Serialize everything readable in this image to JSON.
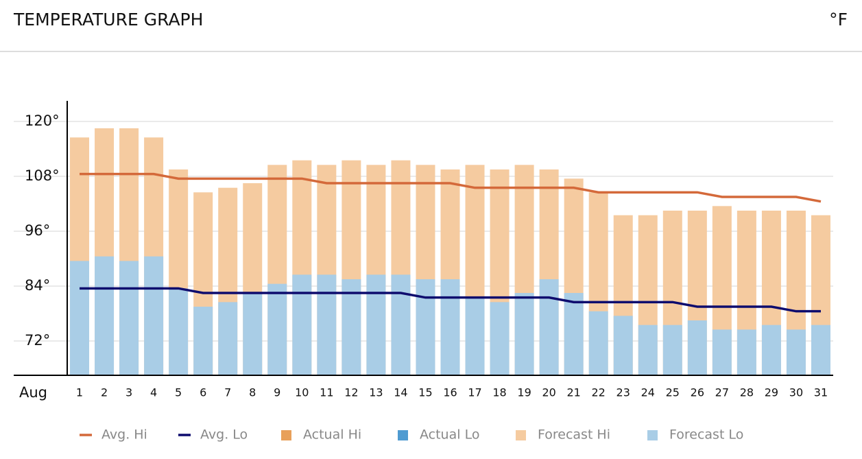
{
  "header": {
    "title": "TEMPERATURE GRAPH",
    "unit": "°F"
  },
  "chart_data": {
    "type": "bar",
    "x_label": "Aug",
    "categories": [
      "1",
      "2",
      "3",
      "4",
      "5",
      "6",
      "7",
      "8",
      "9",
      "10",
      "11",
      "12",
      "13",
      "14",
      "15",
      "16",
      "17",
      "18",
      "19",
      "20",
      "21",
      "22",
      "23",
      "24",
      "25",
      "26",
      "27",
      "28",
      "29",
      "30",
      "31"
    ],
    "ylim": [
      64.5,
      124.5
    ],
    "yticks": [
      {
        "value": 72,
        "label": "72°"
      },
      {
        "value": 84,
        "label": "84°"
      },
      {
        "value": 96,
        "label": "96°"
      },
      {
        "value": 108,
        "label": "108°"
      },
      {
        "value": 120,
        "label": "120°"
      }
    ],
    "grid": true,
    "series": [
      {
        "name": "Avg. Hi",
        "type": "line",
        "color": "#d4693a",
        "values": [
          108.5,
          108.5,
          108.5,
          108.5,
          107.5,
          107.5,
          107.5,
          107.5,
          107.5,
          107.5,
          106.5,
          106.5,
          106.5,
          106.5,
          106.5,
          106.5,
          105.5,
          105.5,
          105.5,
          105.5,
          105.5,
          104.5,
          104.5,
          104.5,
          104.5,
          104.5,
          103.5,
          103.5,
          103.5,
          103.5,
          102.5
        ]
      },
      {
        "name": "Avg. Lo",
        "type": "line",
        "color": "#0e0c6e",
        "values": [
          83.5,
          83.5,
          83.5,
          83.5,
          83.5,
          82.5,
          82.5,
          82.5,
          82.5,
          82.5,
          82.5,
          82.5,
          82.5,
          82.5,
          81.5,
          81.5,
          81.5,
          81.5,
          81.5,
          81.5,
          80.5,
          80.5,
          80.5,
          80.5,
          80.5,
          79.5,
          79.5,
          79.5,
          79.5,
          78.5,
          78.5
        ]
      },
      {
        "name": "Actual Hi",
        "type": "bar",
        "color": "#e8a05a",
        "values": [
          null,
          null,
          null,
          null,
          null,
          null,
          null,
          null,
          null,
          null,
          null,
          null,
          null,
          null,
          null,
          null,
          null,
          null,
          null,
          null,
          null,
          null,
          null,
          null,
          null,
          null,
          null,
          null,
          null,
          null,
          null
        ]
      },
      {
        "name": "Actual Lo",
        "type": "bar",
        "color": "#4f9bd1",
        "values": [
          null,
          null,
          null,
          null,
          null,
          null,
          null,
          null,
          null,
          null,
          null,
          null,
          null,
          null,
          null,
          null,
          null,
          null,
          null,
          null,
          null,
          null,
          null,
          null,
          null,
          null,
          null,
          null,
          null,
          null,
          null
        ]
      },
      {
        "name": "Forecast Hi",
        "type": "bar",
        "color": "#f5cba0",
        "values": [
          116.5,
          118.5,
          118.5,
          116.5,
          109.5,
          104.5,
          105.5,
          106.5,
          110.5,
          111.5,
          110.5,
          111.5,
          110.5,
          111.5,
          110.5,
          109.5,
          110.5,
          109.5,
          110.5,
          109.5,
          107.5,
          104.5,
          99.5,
          99.5,
          100.5,
          100.5,
          101.5,
          100.5,
          100.5,
          100.5,
          99.5
        ]
      },
      {
        "name": "Forecast Lo",
        "type": "bar",
        "color": "#a9cde6",
        "values": [
          89.5,
          90.5,
          89.5,
          90.5,
          83.5,
          79.5,
          80.5,
          82.5,
          84.5,
          86.5,
          86.5,
          85.5,
          86.5,
          86.5,
          85.5,
          85.5,
          81.5,
          80.5,
          82.5,
          85.5,
          82.5,
          78.5,
          77.5,
          75.5,
          75.5,
          76.5,
          74.5,
          74.5,
          75.5,
          74.5,
          75.5
        ]
      }
    ]
  }
}
